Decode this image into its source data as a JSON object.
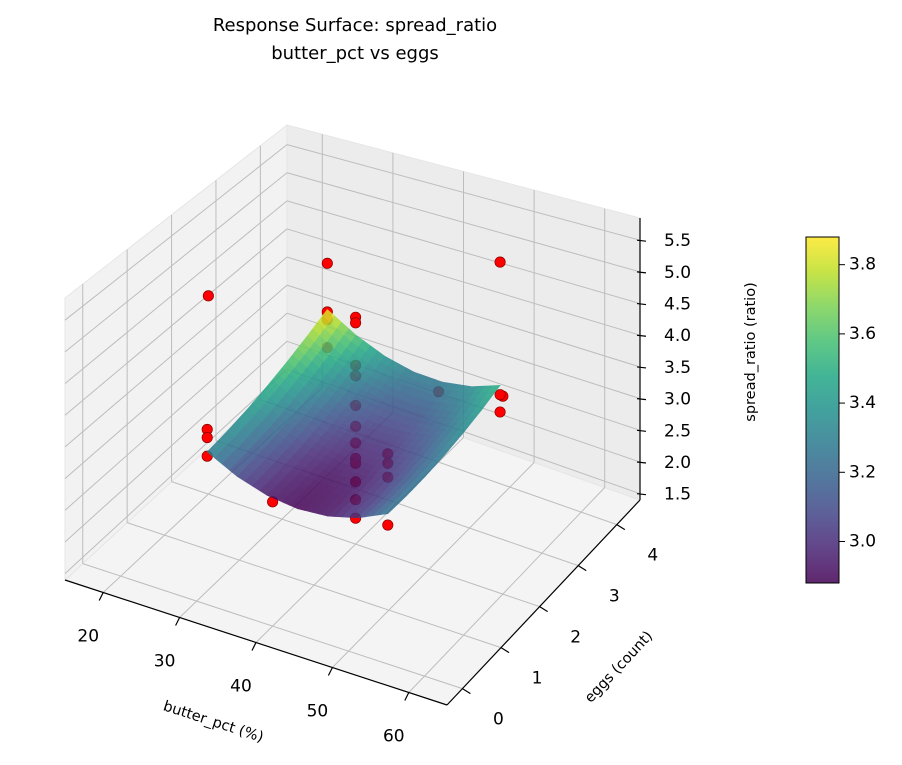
{
  "chart_data": {
    "type": "surface",
    "title": "Response Surface: spread_ratio",
    "subtitle": "butter_pct vs eggs",
    "xlabel": "butter_pct (%)",
    "ylabel": "eggs (count)",
    "zlabel": "spread_ratio (ratio)",
    "xlim": [
      15,
      65
    ],
    "ylim": [
      -0.4,
      4.6
    ],
    "zlim": [
      1.4,
      5.85
    ],
    "xticks": [
      "20",
      "30",
      "40",
      "50",
      "60"
    ],
    "yticks": [
      "0",
      "1",
      "2",
      "3",
      "4"
    ],
    "zticks": [
      "1.5",
      "2.0",
      "2.5",
      "3.0",
      "3.5",
      "4.0",
      "4.5",
      "5.0",
      "5.5"
    ],
    "grid": true,
    "view": {
      "elevation": 30,
      "azimuth": -60
    },
    "surface": {
      "colormap": "viridis",
      "x": [
        28,
        32,
        36,
        40,
        44,
        48,
        52
      ],
      "y": [
        0.6,
        1.067,
        1.533,
        2.0,
        2.467,
        2.933,
        3.4
      ],
      "z": [
        [
          3.32,
          3.082,
          2.936,
          2.882,
          2.92,
          3.049,
          3.27
        ],
        [
          3.36,
          3.113,
          2.958,
          2.895,
          2.924,
          3.044,
          3.256
        ],
        [
          3.421,
          3.166,
          3.002,
          2.93,
          2.95,
          3.061,
          3.265
        ],
        [
          3.505,
          3.241,
          3.068,
          2.987,
          2.998,
          3.101,
          3.295
        ],
        [
          3.611,
          3.338,
          3.156,
          3.066,
          3.068,
          3.162,
          3.348
        ],
        [
          3.739,
          3.457,
          3.267,
          3.168,
          3.161,
          3.246,
          3.423
        ],
        [
          3.88,
          3.599,
          3.4,
          3.292,
          3.276,
          3.352,
          3.52
        ]
      ]
    },
    "points": {
      "color": "#ff0000",
      "edge_color": "#8b0000",
      "data": [
        [
          20,
          2,
          4.69
        ],
        [
          60,
          2,
          4.54
        ],
        [
          40,
          0,
          3.37
        ],
        [
          40,
          4,
          2.57
        ],
        [
          28,
          0.6,
          3.68
        ],
        [
          28,
          0.6,
          3.55
        ],
        [
          28,
          0.6,
          3.25
        ],
        [
          52,
          0.6,
          4.22
        ],
        [
          52,
          0.6,
          4.07
        ],
        [
          52,
          0.6,
          3.85
        ],
        [
          52,
          0.6,
          3.09
        ],
        [
          28,
          3.4,
          4.66
        ],
        [
          28,
          3.4,
          3.84
        ],
        [
          28,
          3.4,
          3.71
        ],
        [
          28,
          3.4,
          3.24
        ],
        [
          52,
          3.4,
          5.51
        ],
        [
          52,
          3.4,
          3.37
        ],
        [
          52,
          3.4,
          3.09
        ],
        [
          40,
          2,
          5.08
        ],
        [
          40,
          2,
          4.99
        ],
        [
          40,
          2,
          4.3
        ],
        [
          40,
          2,
          4.13
        ],
        [
          40,
          2,
          3.65
        ],
        [
          40,
          2,
          3.31
        ],
        [
          40,
          2,
          3.04
        ],
        [
          40,
          2,
          2.79
        ],
        [
          40,
          2,
          2.71
        ],
        [
          40,
          2,
          2.41
        ],
        [
          40,
          2,
          2.12
        ],
        [
          40,
          2,
          1.82
        ]
      ]
    },
    "colorbar": {
      "range": [
        2.88,
        3.88
      ],
      "ticks": [
        "3.0",
        "3.2",
        "3.4",
        "3.6",
        "3.8"
      ]
    }
  }
}
